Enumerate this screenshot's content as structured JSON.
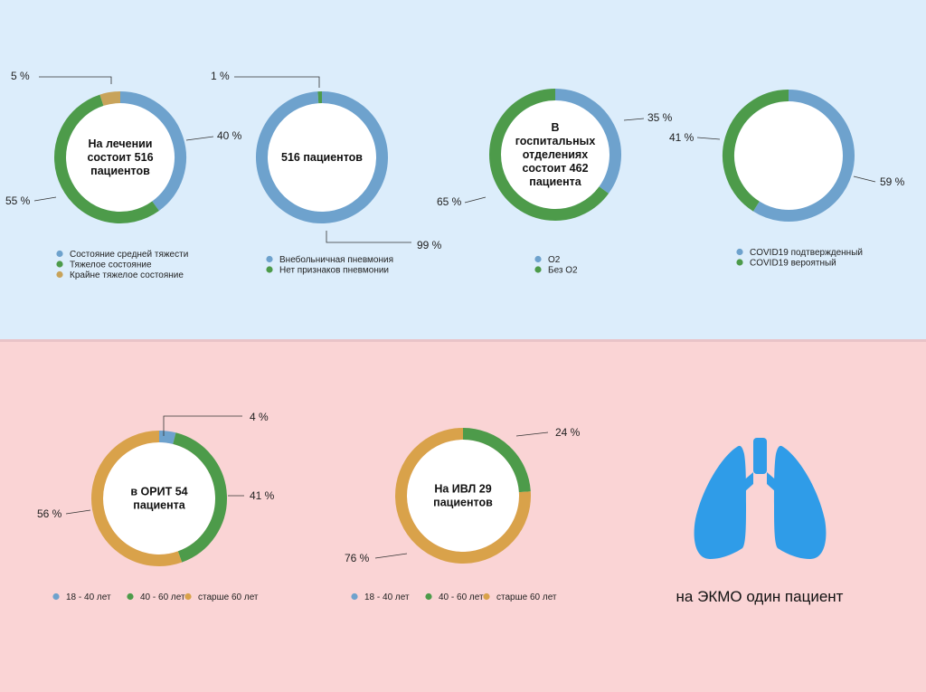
{
  "colors": {
    "blue": "#6ea2cd",
    "green": "#4d9b4a",
    "orange": "#d9a24a",
    "olive": "#c8a35a",
    "lung": "#2f9ce8"
  },
  "ekmo": {
    "caption": "на ЭКМО один пациент",
    "icon": "lungs-icon"
  },
  "chart_data": [
    {
      "type": "pie",
      "title": "На лечении состоит 516 пациентов",
      "center_lines": [
        "На лечении",
        "состоит 516",
        "пациентов"
      ],
      "slices": [
        {
          "name": "Состояние средней тяжести",
          "value": 40,
          "label": "40 %",
          "color": "#6ea2cd"
        },
        {
          "name": "Тяжелое состояние",
          "value": 55,
          "label": "55 %",
          "color": "#4d9b4a"
        },
        {
          "name": "Крайне тяжелое состояние",
          "value": 5,
          "label": "5 %",
          "color": "#c8a35a"
        }
      ],
      "legend": [
        "Состояние средней тяжести",
        "Тяжелое состояние",
        "Крайне тяжелое состояние"
      ]
    },
    {
      "type": "pie",
      "title": "516 пациентов",
      "center_lines": [
        "516 пациентов"
      ],
      "slices": [
        {
          "name": "Внебольничная пневмония",
          "value": 99,
          "label": "99 %",
          "color": "#6ea2cd"
        },
        {
          "name": "Нет признаков пневмонии",
          "value": 1,
          "label": "1 %",
          "color": "#4d9b4a"
        }
      ],
      "legend": [
        "Внебольничная пневмония",
        "Нет признаков пневмонии"
      ]
    },
    {
      "type": "pie",
      "title": "В госпитальных отделениях состоит 462 пациента",
      "center_lines": [
        "В",
        "госпитальных",
        "отделениях",
        "состоит 462",
        "пациента"
      ],
      "slices": [
        {
          "name": "O2",
          "value": 35,
          "label": "35 %",
          "color": "#6ea2cd"
        },
        {
          "name": "Без O2",
          "value": 65,
          "label": "65 %",
          "color": "#4d9b4a"
        }
      ],
      "legend": [
        "O2",
        "Без O2"
      ]
    },
    {
      "type": "pie",
      "title": "",
      "center_lines": [],
      "slices": [
        {
          "name": "COVID19 подтвержденный",
          "value": 59,
          "label": "59 %",
          "color": "#6ea2cd"
        },
        {
          "name": "COVID19 вероятный",
          "value": 41,
          "label": "41 %",
          "color": "#4d9b4a"
        }
      ],
      "legend": [
        "COVID19 подтвержденный",
        "COVID19 вероятный"
      ]
    },
    {
      "type": "pie",
      "title": "в ОРИТ 54 пациента",
      "center_lines": [
        "в ОРИТ 54",
        "пациента"
      ],
      "slices": [
        {
          "name": "18 - 40 лет",
          "value": 4,
          "label": "4 %",
          "color": "#6ea2cd"
        },
        {
          "name": "40 - 60 лет",
          "value": 41,
          "label": "41 %",
          "color": "#4d9b4a"
        },
        {
          "name": "старше 60 лет",
          "value": 56,
          "label": "56 %",
          "color": "#d9a24a"
        }
      ],
      "legend": [
        "18 - 40 лет",
        "40 - 60 лет",
        "старше 60 лет"
      ]
    },
    {
      "type": "pie",
      "title": "На ИВЛ 29 пациентов",
      "center_lines": [
        "На ИВЛ 29",
        "пациентов"
      ],
      "slices": [
        {
          "name": "40 - 60 лет",
          "value": 24,
          "label": "24 %",
          "color": "#4d9b4a"
        },
        {
          "name": "старше 60 лет",
          "value": 76,
          "label": "76 %",
          "color": "#d9a24a"
        }
      ],
      "legend": [
        "18 - 40 лет",
        "40 - 60 лет",
        "старше 60 лет"
      ],
      "legend_colors": [
        "#6ea2cd",
        "#4d9b4a",
        "#d9a24a"
      ]
    }
  ]
}
